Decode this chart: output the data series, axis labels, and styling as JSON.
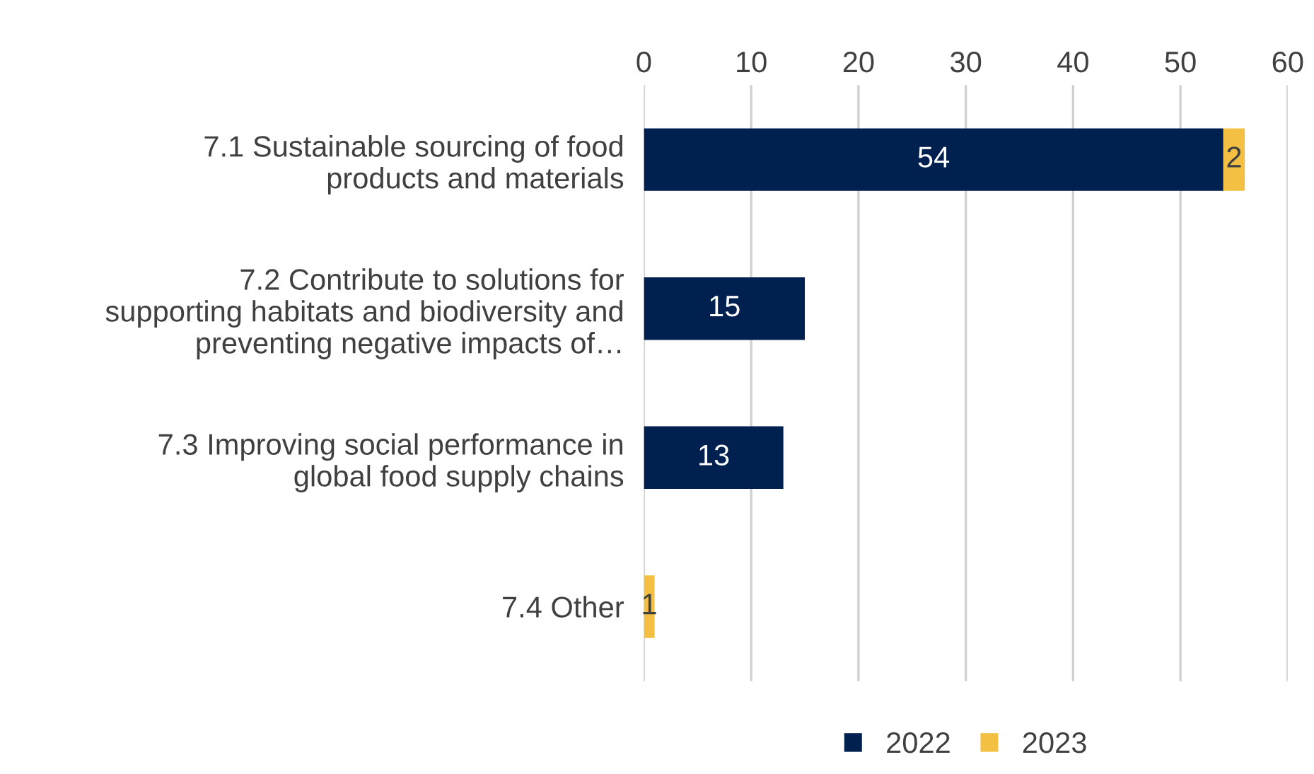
{
  "chart_data": {
    "type": "bar",
    "orientation": "horizontal",
    "stacked": true,
    "categories": [
      "7.1 Sustainable sourcing of food\nproducts and materials",
      "7.2 Contribute to solutions for\nsupporting habitats and biodiversity and\npreventing negative impacts of…",
      "7.3 Improving social performance in\nglobal food supply chains",
      "7.4 Other"
    ],
    "series": [
      {
        "name": "2022",
        "color": "#002050",
        "values": [
          54,
          15,
          13,
          null
        ]
      },
      {
        "name": "2023",
        "color": "#f4c043",
        "values": [
          2,
          null,
          null,
          1
        ]
      }
    ],
    "xlim": [
      0,
      60
    ],
    "xticks": [
      0,
      10,
      20,
      30,
      40,
      50,
      60
    ],
    "grid": "x",
    "legend": "bottom",
    "data_labels": true
  }
}
